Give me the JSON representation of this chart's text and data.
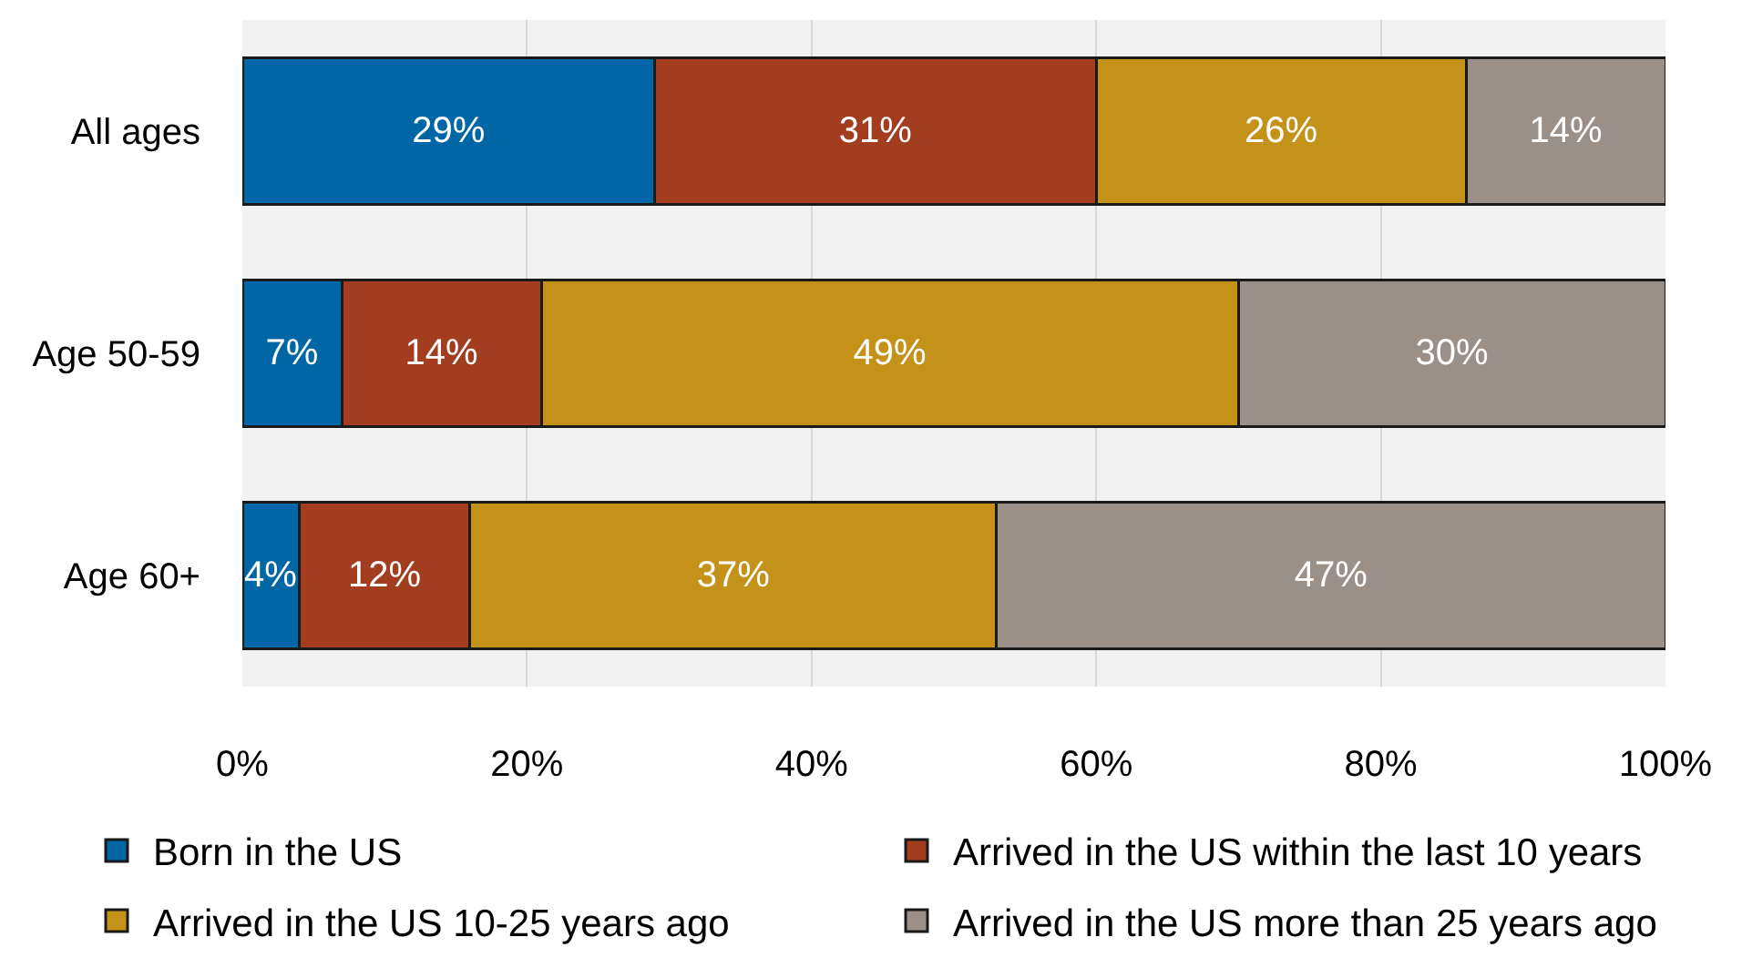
{
  "chart_data": {
    "type": "bar",
    "orientation": "horizontal",
    "stacked": true,
    "categories": [
      "All ages",
      "Age 50-59",
      "Age 60+"
    ],
    "series": [
      {
        "name": "Born in the US",
        "color": "#0066a6",
        "values": [
          29,
          7,
          4
        ],
        "value_labels": [
          "29%",
          "7%",
          "4%"
        ]
      },
      {
        "name": "Arrived in the US within the last 10 years",
        "color": "#a33d1f",
        "values": [
          31,
          14,
          12
        ],
        "value_labels": [
          "31%",
          "14%",
          "12%"
        ]
      },
      {
        "name": "Arrived in the US 10-25 years ago",
        "color": "#c49119",
        "values": [
          26,
          49,
          37
        ],
        "value_labels": [
          "26%",
          "49%",
          "37%"
        ]
      },
      {
        "name": "Arrived in the US more than 25 years ago",
        "color": "#9a9087",
        "values": [
          14,
          30,
          47
        ],
        "value_labels": [
          "14%",
          "30%",
          "47%"
        ]
      }
    ],
    "xlim": [
      0,
      100
    ],
    "xticks": [
      {
        "value": 0,
        "label": "0%"
      },
      {
        "value": 20,
        "label": "20%"
      },
      {
        "value": 40,
        "label": "40%"
      },
      {
        "value": 60,
        "label": "60%"
      },
      {
        "value": 80,
        "label": "80%"
      },
      {
        "value": 100,
        "label": "100%"
      }
    ],
    "grid": "x",
    "legend": "bottom"
  }
}
